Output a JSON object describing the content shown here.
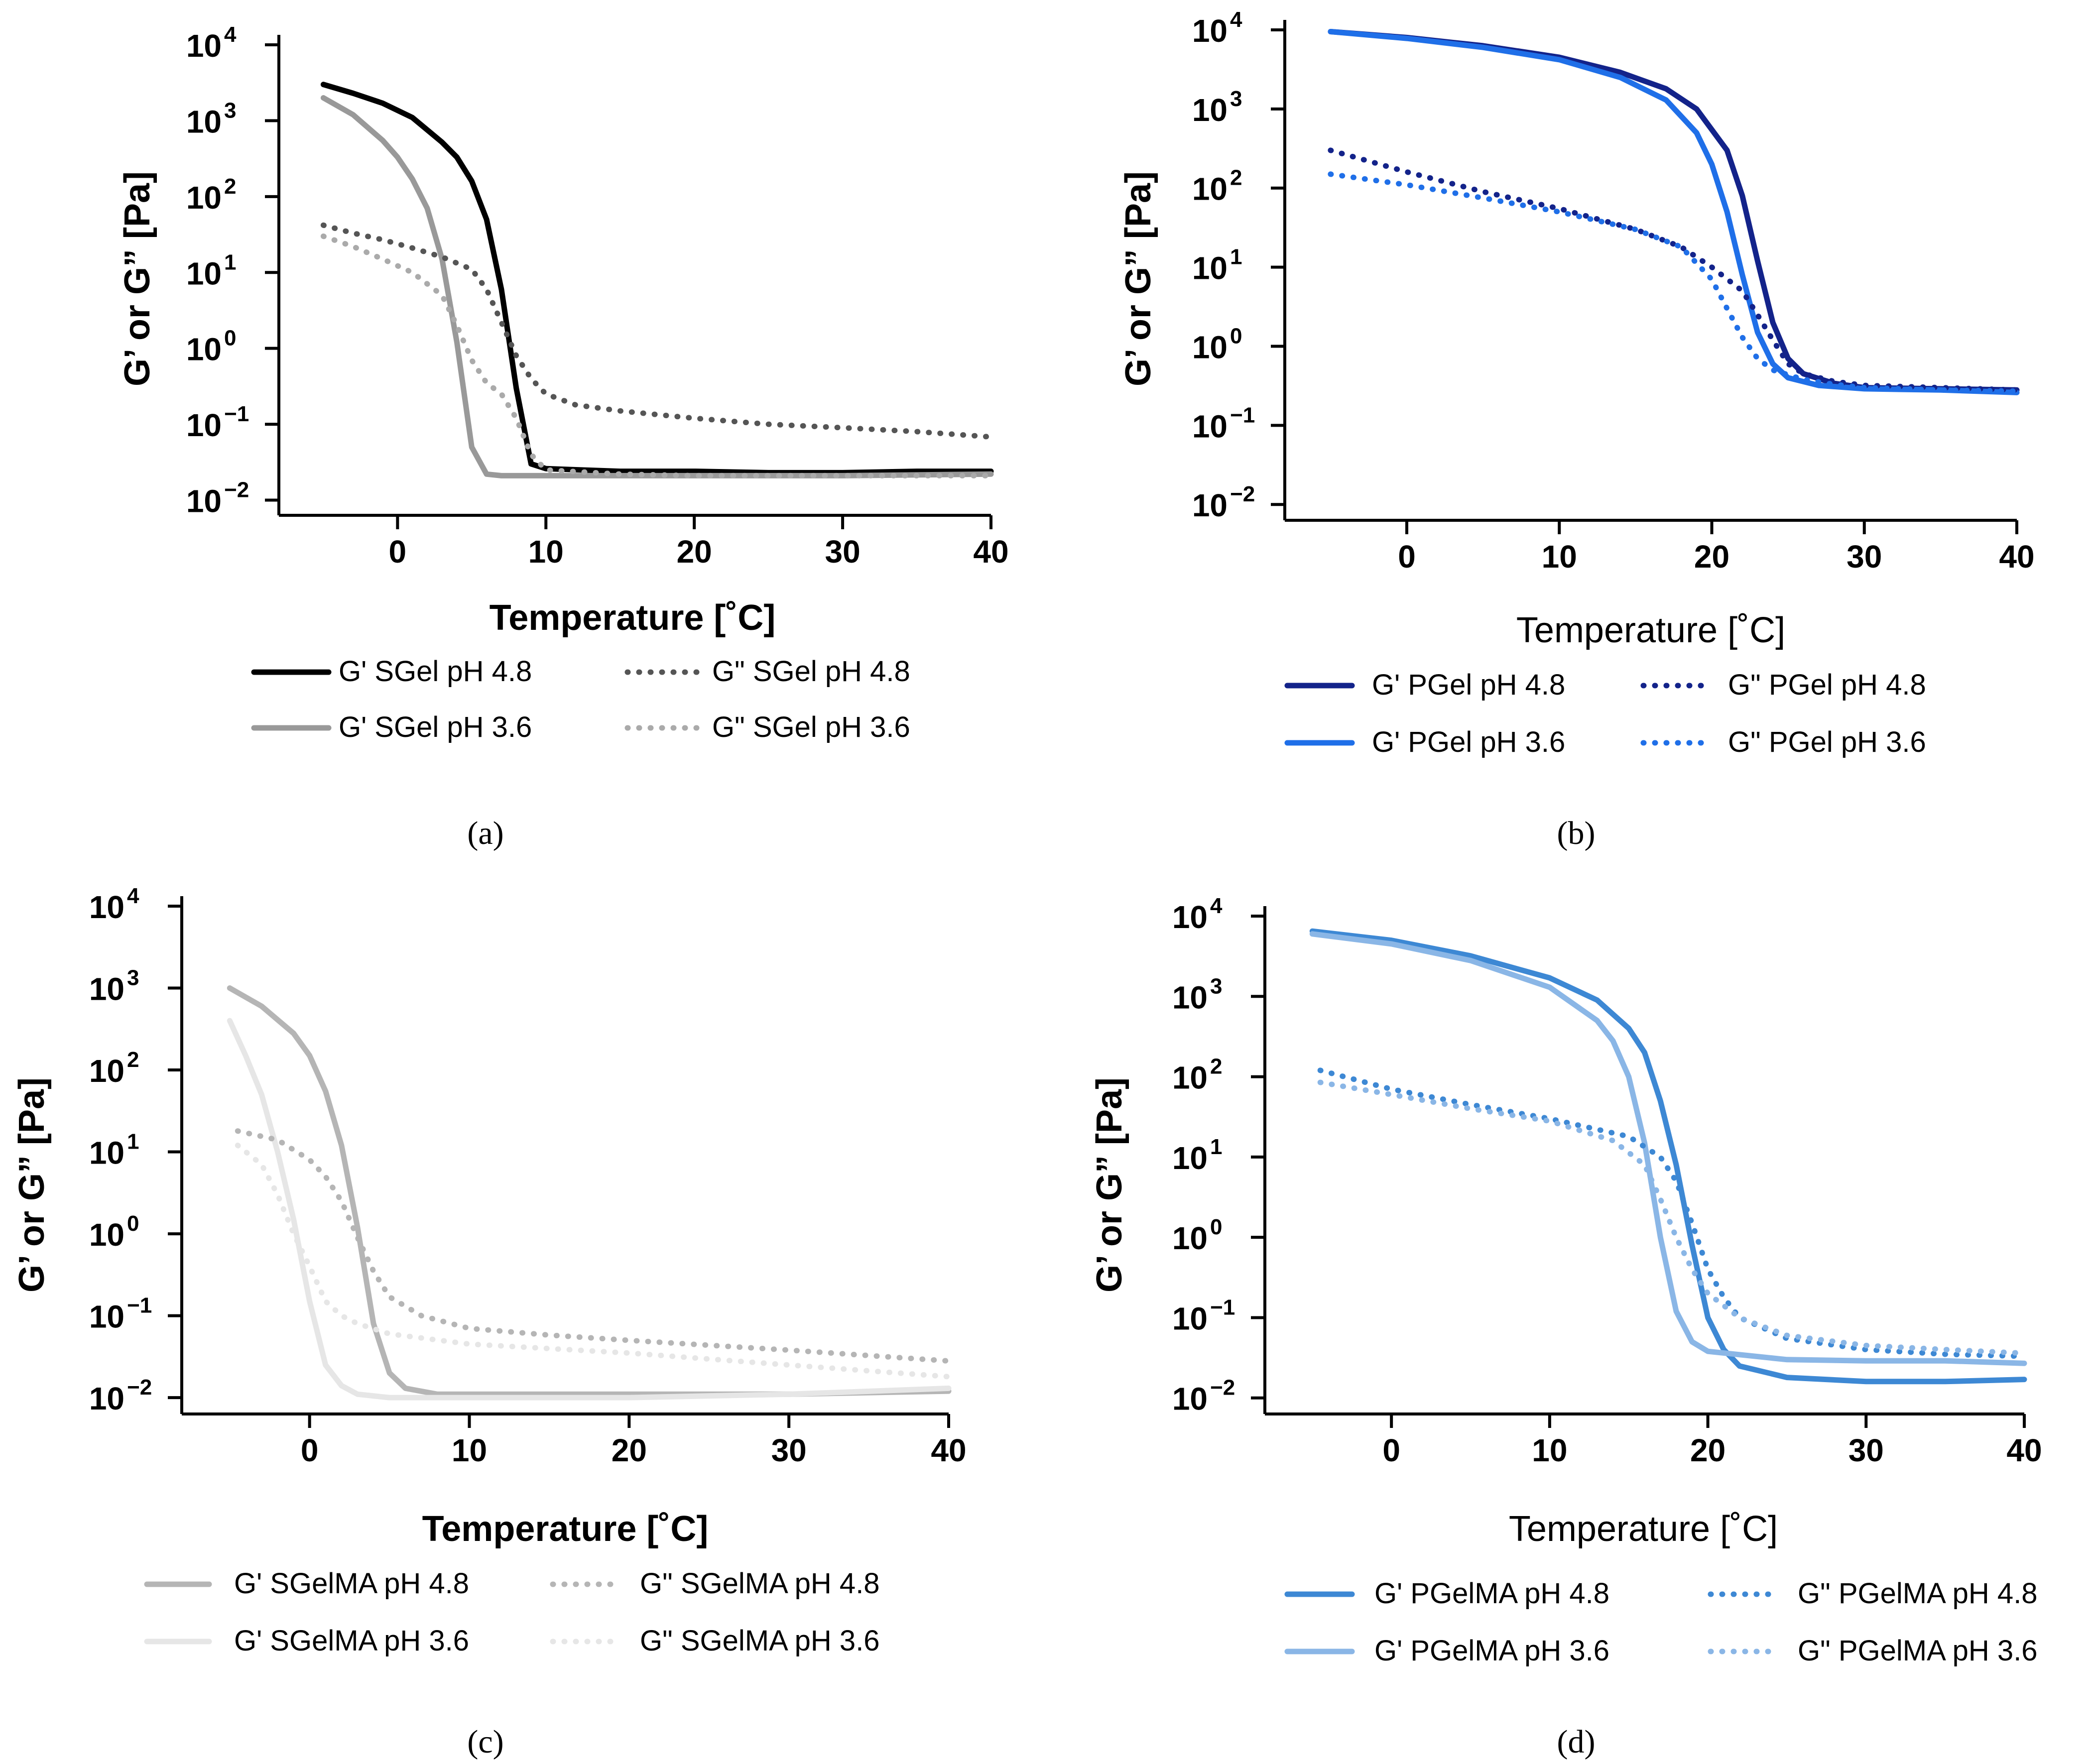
{
  "chart_data": [
    {
      "id": "a",
      "type": "line",
      "caption": "(a)",
      "xlabel": "Temperature [˚C]",
      "ylabel": "G’ or G” [Pa]",
      "xlim": [
        -8,
        40
      ],
      "xticks": [
        "0",
        "10",
        "20",
        "30",
        "40"
      ],
      "ylim": [
        -2.2,
        4
      ],
      "ytick_labels": [
        "10",
        "10",
        "10",
        "10",
        "10",
        "10",
        "10"
      ],
      "ytick_exponents": [
        "4",
        "3",
        "2",
        "1",
        "0",
        "−1",
        "−2"
      ],
      "ylog": true,
      "legend": "bottom",
      "series": [
        {
          "name": "G' SGel pH 4.8",
          "color": "#000000",
          "style": "solid",
          "x": [
            -5,
            -3,
            -1,
            1,
            3,
            4,
            5,
            6,
            7,
            8,
            9,
            10,
            15,
            20,
            25,
            30,
            35,
            40
          ],
          "y": [
            3000,
            2300,
            1700,
            1100,
            520,
            330,
            160,
            50,
            6,
            0.3,
            0.03,
            0.026,
            0.024,
            0.024,
            0.023,
            0.023,
            0.024,
            0.024
          ]
        },
        {
          "name": "G' SGel pH 3.6",
          "color": "#999999",
          "style": "solid",
          "x": [
            -5,
            -3,
            -1,
            0,
            1,
            2,
            3,
            4,
            5,
            6,
            7,
            10,
            20,
            30,
            40
          ],
          "y": [
            2000,
            1200,
            550,
            330,
            170,
            70,
            15,
            1.2,
            0.05,
            0.022,
            0.021,
            0.021,
            0.021,
            0.021,
            0.022
          ]
        },
        {
          "name": "G\" SGel pH 4.8",
          "color": "#555555",
          "style": "dotted",
          "x": [
            -5,
            -3,
            -1,
            1,
            3,
            5,
            6,
            7,
            8,
            9,
            10,
            12,
            15,
            20,
            25,
            30,
            35,
            40
          ],
          "y": [
            42,
            33,
            27,
            21,
            16,
            11,
            6,
            2.2,
            0.8,
            0.4,
            0.25,
            0.18,
            0.15,
            0.12,
            0.1,
            0.09,
            0.08,
            0.068
          ]
        },
        {
          "name": "G\" SGel pH 3.6",
          "color": "#aaaaaa",
          "style": "dotted",
          "x": [
            -5,
            -3,
            -1,
            1,
            3,
            4,
            5,
            6,
            7,
            8,
            9,
            10,
            15,
            20,
            30,
            40
          ],
          "y": [
            30,
            22,
            15,
            10,
            5,
            2,
            0.7,
            0.35,
            0.25,
            0.12,
            0.04,
            0.025,
            0.022,
            0.021,
            0.021,
            0.021
          ]
        }
      ]
    },
    {
      "id": "b",
      "type": "line",
      "caption": "(b)",
      "xlabel": "Temperature [˚C]",
      "ylabel": "G’ or G” [Pa]",
      "xlim": [
        -8,
        40
      ],
      "xticks": [
        "0",
        "10",
        "20",
        "30",
        "40"
      ],
      "ylim": [
        -2.2,
        4
      ],
      "ytick_labels": [
        "10",
        "10",
        "10",
        "10",
        "10",
        "10",
        "10"
      ],
      "ytick_exponents": [
        "4",
        "3",
        "2",
        "1",
        "0",
        "−1",
        "−2"
      ],
      "ylog": true,
      "legend": "bottom",
      "series": [
        {
          "name": "G' PGel pH 4.8",
          "color": "#13238a",
          "style": "solid",
          "x": [
            -5,
            0,
            5,
            10,
            14,
            17,
            19,
            21,
            22,
            23,
            24,
            25,
            26,
            28,
            30,
            35,
            40
          ],
          "y": [
            9500,
            8000,
            6300,
            4500,
            2900,
            1800,
            1000,
            300,
            80,
            12,
            2,
            0.7,
            0.45,
            0.34,
            0.3,
            0.29,
            0.28
          ]
        },
        {
          "name": "G' PGel pH 3.6",
          "color": "#1f6fe8",
          "style": "solid",
          "x": [
            -5,
            0,
            5,
            10,
            14,
            17,
            19,
            20,
            21,
            22,
            23,
            24,
            25,
            27,
            30,
            35,
            40
          ],
          "y": [
            9500,
            7800,
            6000,
            4200,
            2500,
            1300,
            500,
            200,
            50,
            8,
            1.5,
            0.6,
            0.4,
            0.32,
            0.29,
            0.28,
            0.26
          ]
        },
        {
          "name": "G\" PGel pH 4.8",
          "color": "#13238a",
          "style": "dotted",
          "x": [
            -5,
            0,
            5,
            10,
            15,
            18,
            20,
            22,
            23,
            24,
            25,
            26,
            28,
            30,
            35,
            40
          ],
          "y": [
            300,
            160,
            90,
            55,
            30,
            18,
            10,
            5,
            2.5,
            1.2,
            0.6,
            0.45,
            0.36,
            0.32,
            0.3,
            0.28
          ]
        },
        {
          "name": "G\" PGel pH 3.6",
          "color": "#1f6fe8",
          "style": "dotted",
          "x": [
            -5,
            0,
            5,
            10,
            15,
            18,
            20,
            21,
            22,
            23,
            24,
            26,
            28,
            30,
            35,
            40
          ],
          "y": [
            150,
            110,
            75,
            50,
            30,
            18,
            7,
            3,
            1.3,
            0.7,
            0.5,
            0.38,
            0.33,
            0.3,
            0.28,
            0.27
          ]
        }
      ]
    },
    {
      "id": "c",
      "type": "line",
      "caption": "(c)",
      "xlabel": "Temperature [˚C]",
      "ylabel": "G’ or G” [Pa]",
      "xlim": [
        -8,
        40
      ],
      "xticks": [
        "0",
        "10",
        "20",
        "30",
        "40"
      ],
      "ylim": [
        -2.2,
        4
      ],
      "ytick_labels": [
        "10",
        "10",
        "10",
        "10",
        "10",
        "10",
        "10"
      ],
      "ytick_exponents": [
        "4",
        "3",
        "2",
        "1",
        "0",
        "−1",
        "−2"
      ],
      "ylog": true,
      "legend": "bottom",
      "series": [
        {
          "name": "G' SGelMA pH 4.8",
          "color": "#b5b5b5",
          "style": "solid",
          "x": [
            -5,
            -3,
            -1,
            0,
            1,
            2,
            3,
            4,
            5,
            6,
            8,
            10,
            20,
            30,
            40
          ],
          "y": [
            1000,
            600,
            280,
            150,
            55,
            12,
            1.2,
            0.08,
            0.02,
            0.013,
            0.011,
            0.011,
            0.011,
            0.011,
            0.012
          ]
        },
        {
          "name": "G' SGelMA pH 3.6",
          "color": "#e6e6e6",
          "style": "solid",
          "x": [
            -5,
            -4,
            -3,
            -2,
            -1,
            0,
            1,
            2,
            3,
            5,
            10,
            20,
            30,
            40
          ],
          "y": [
            400,
            150,
            50,
            10,
            1.5,
            0.15,
            0.025,
            0.014,
            0.011,
            0.01,
            0.01,
            0.01,
            0.011,
            0.013
          ]
        },
        {
          "name": "G\" SGelMA pH 4.8",
          "color": "#b5b5b5",
          "style": "dotted",
          "x": [
            -4.5,
            -2,
            0,
            1,
            2,
            3,
            4,
            5,
            7,
            10,
            15,
            20,
            30,
            40
          ],
          "y": [
            18,
            14,
            8,
            5,
            2.5,
            0.9,
            0.35,
            0.17,
            0.1,
            0.07,
            0.058,
            0.05,
            0.038,
            0.028
          ]
        },
        {
          "name": "G\" SGelMA pH 3.6",
          "color": "#e6e6e6",
          "style": "dotted",
          "x": [
            -4.5,
            -3,
            -2,
            -1,
            0,
            1,
            2,
            3,
            5,
            10,
            20,
            30,
            40
          ],
          "y": [
            12,
            7,
            3,
            1,
            0.4,
            0.15,
            0.1,
            0.08,
            0.06,
            0.045,
            0.035,
            0.025,
            0.018
          ]
        }
      ]
    },
    {
      "id": "d",
      "type": "line",
      "caption": "(d)",
      "xlabel": "Temperature [˚C]",
      "ylabel": "G’ or G” [Pa]",
      "xlim": [
        -8,
        40
      ],
      "xticks": [
        "0",
        "10",
        "20",
        "30",
        "40"
      ],
      "ylim": [
        -2.2,
        4
      ],
      "ytick_labels": [
        "10",
        "10",
        "10",
        "10",
        "10",
        "10",
        "10"
      ],
      "ytick_exponents": [
        "4",
        "3",
        "2",
        "1",
        "0",
        "−1",
        "−2"
      ],
      "ylog": true,
      "legend": "bottom",
      "series": [
        {
          "name": "G' PGelMA pH 4.8",
          "color": "#3d88d4",
          "style": "solid",
          "x": [
            -5,
            0,
            5,
            10,
            13,
            15,
            16,
            17,
            18,
            19,
            20,
            21,
            22,
            25,
            30,
            35,
            40
          ],
          "y": [
            6500,
            5000,
            3200,
            1700,
            900,
            400,
            200,
            50,
            8,
            0.8,
            0.1,
            0.04,
            0.025,
            0.018,
            0.016,
            0.016,
            0.017
          ]
        },
        {
          "name": "G' PGelMA pH 3.6",
          "color": "#8ab6e6",
          "style": "solid",
          "x": [
            -5,
            0,
            5,
            10,
            13,
            14,
            15,
            16,
            17,
            18,
            19,
            20,
            25,
            30,
            35,
            40
          ],
          "y": [
            6000,
            4500,
            2800,
            1300,
            500,
            280,
            100,
            15,
            1,
            0.12,
            0.05,
            0.038,
            0.03,
            0.029,
            0.029,
            0.027
          ]
        },
        {
          "name": "G\" PGelMA pH 4.8",
          "color": "#3d88d4",
          "style": "dotted",
          "x": [
            -4.5,
            0,
            5,
            10,
            15,
            17,
            18,
            19,
            20,
            21,
            22,
            25,
            30,
            35,
            40
          ],
          "y": [
            120,
            70,
            45,
            30,
            18,
            10,
            5,
            1.5,
            0.4,
            0.18,
            0.1,
            0.055,
            0.04,
            0.035,
            0.033
          ]
        },
        {
          "name": "G\" PGelMA pH 3.6",
          "color": "#8ab6e6",
          "style": "dotted",
          "x": [
            -4.5,
            0,
            5,
            10,
            14,
            16,
            17,
            18,
            19,
            20,
            22,
            25,
            30,
            35,
            40
          ],
          "y": [
            85,
            60,
            40,
            28,
            16,
            8,
            3,
            1,
            0.4,
            0.2,
            0.1,
            0.06,
            0.045,
            0.04,
            0.036
          ]
        }
      ]
    }
  ]
}
